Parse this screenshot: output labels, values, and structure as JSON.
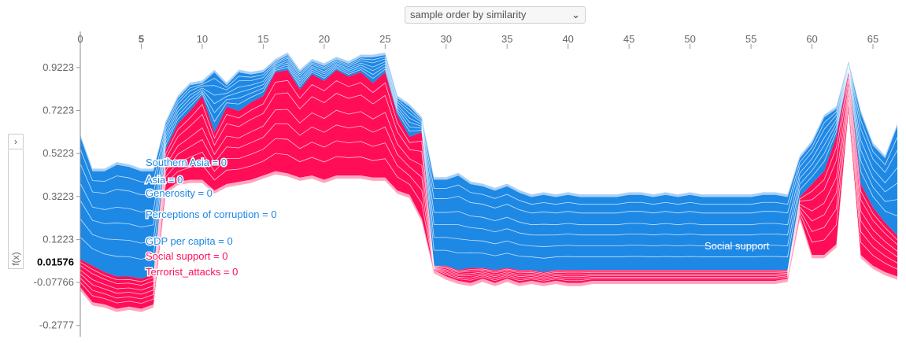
{
  "controls": {
    "order_select": "sample order by similarity",
    "expand_glyph": "›"
  },
  "yaxis_label": "f(x)",
  "colors": {
    "positive": "#ff0d57",
    "negative": "#1e88e5"
  },
  "chart_data": {
    "type": "area",
    "title": "",
    "xlabel": "",
    "ylabel": "f(x)",
    "xlim": [
      0,
      67
    ],
    "ylim": [
      -0.33,
      1.09
    ],
    "x_ticks": [
      0,
      5,
      10,
      15,
      20,
      25,
      30,
      35,
      40,
      45,
      50,
      55,
      60,
      65
    ],
    "x_tick_highlight": 5,
    "y_ticks": [
      0.9223,
      0.7223,
      0.5223,
      0.3223,
      0.1223,
      -0.07766,
      -0.2777
    ],
    "y_tick_labels": [
      "0.9223",
      "0.7223",
      "0.5223",
      "0.3223",
      "0.1223",
      "-0.07766",
      "-0.2777"
    ],
    "base_value": 0.01576,
    "base_value_label": "0.01576",
    "grid": false,
    "legend": "none",
    "x": [
      0,
      1,
      2,
      3,
      4,
      5,
      6,
      7,
      8,
      9,
      10,
      11,
      12,
      13,
      14,
      15,
      16,
      17,
      18,
      19,
      20,
      21,
      22,
      23,
      24,
      25,
      26,
      27,
      28,
      29,
      30,
      31,
      32,
      33,
      34,
      35,
      36,
      37,
      38,
      39,
      40,
      41,
      42,
      43,
      44,
      45,
      46,
      47,
      48,
      49,
      50,
      51,
      52,
      53,
      54,
      55,
      56,
      57,
      58,
      59,
      60,
      61,
      62,
      63,
      64,
      65,
      66,
      67
    ],
    "upper": [
      0.6,
      0.44,
      0.44,
      0.47,
      0.46,
      0.44,
      0.44,
      0.66,
      0.78,
      0.84,
      0.85,
      0.9,
      0.84,
      0.9,
      0.89,
      0.9,
      0.95,
      0.98,
      0.9,
      0.95,
      0.93,
      0.96,
      0.94,
      0.97,
      0.97,
      0.98,
      0.78,
      0.74,
      0.68,
      0.4,
      0.4,
      0.42,
      0.38,
      0.37,
      0.35,
      0.37,
      0.34,
      0.32,
      0.33,
      0.32,
      0.33,
      0.32,
      0.32,
      0.32,
      0.32,
      0.33,
      0.33,
      0.32,
      0.33,
      0.32,
      0.33,
      0.32,
      0.32,
      0.32,
      0.32,
      0.32,
      0.33,
      0.33,
      0.32,
      0.5,
      0.57,
      0.69,
      0.73,
      0.94,
      0.71,
      0.56,
      0.5,
      0.65
    ],
    "boundary": [
      0.03,
      0.0,
      -0.03,
      -0.05,
      -0.05,
      -0.06,
      -0.04,
      0.54,
      0.66,
      0.72,
      0.79,
      0.62,
      0.74,
      0.72,
      0.76,
      0.79,
      0.9,
      0.91,
      0.82,
      0.89,
      0.86,
      0.91,
      0.88,
      0.9,
      0.85,
      0.9,
      0.7,
      0.6,
      0.62,
      0.0,
      0.0,
      -0.02,
      -0.01,
      -0.01,
      -0.02,
      -0.01,
      -0.02,
      -0.02,
      -0.03,
      -0.02,
      -0.02,
      -0.02,
      -0.02,
      -0.02,
      -0.02,
      -0.02,
      -0.02,
      -0.02,
      -0.02,
      -0.02,
      -0.02,
      -0.02,
      -0.02,
      -0.02,
      -0.02,
      -0.02,
      -0.02,
      -0.02,
      -0.02,
      0.32,
      0.38,
      0.44,
      0.6,
      0.9,
      0.38,
      0.27,
      0.2,
      0.14
    ],
    "lower": [
      -0.1,
      -0.17,
      -0.18,
      -0.2,
      -0.19,
      -0.2,
      -0.18,
      0.35,
      0.39,
      0.4,
      0.4,
      0.35,
      0.38,
      0.39,
      0.4,
      0.42,
      0.44,
      0.43,
      0.41,
      0.42,
      0.4,
      0.42,
      0.42,
      0.42,
      0.41,
      0.41,
      0.35,
      0.33,
      0.22,
      -0.02,
      -0.05,
      -0.07,
      -0.08,
      -0.06,
      -0.08,
      -0.06,
      -0.08,
      -0.07,
      -0.08,
      -0.07,
      -0.08,
      -0.08,
      -0.07,
      -0.07,
      -0.07,
      -0.07,
      -0.07,
      -0.07,
      -0.07,
      -0.07,
      -0.07,
      -0.07,
      -0.07,
      -0.07,
      -0.07,
      -0.07,
      -0.07,
      -0.07,
      -0.06,
      0.23,
      0.05,
      0.05,
      0.1,
      0.73,
      0.05,
      0.0,
      -0.03,
      -0.05
    ],
    "feature_labels": [
      {
        "text": "Southern Asia = 0",
        "side": "negative"
      },
      {
        "text": "Asia = 0",
        "side": "negative"
      },
      {
        "text": "Generosity = 0",
        "side": "negative"
      },
      {
        "text": "Perceptions of corruption = 0",
        "side": "negative"
      },
      {
        "text": "GDP per capita = 0",
        "side": "negative"
      },
      {
        "text": "Social support = 0",
        "side": "positive"
      },
      {
        "text": "Terrorist_attacks = 0",
        "side": "positive"
      },
      {
        "text": "Social support",
        "side": "negative"
      }
    ]
  }
}
